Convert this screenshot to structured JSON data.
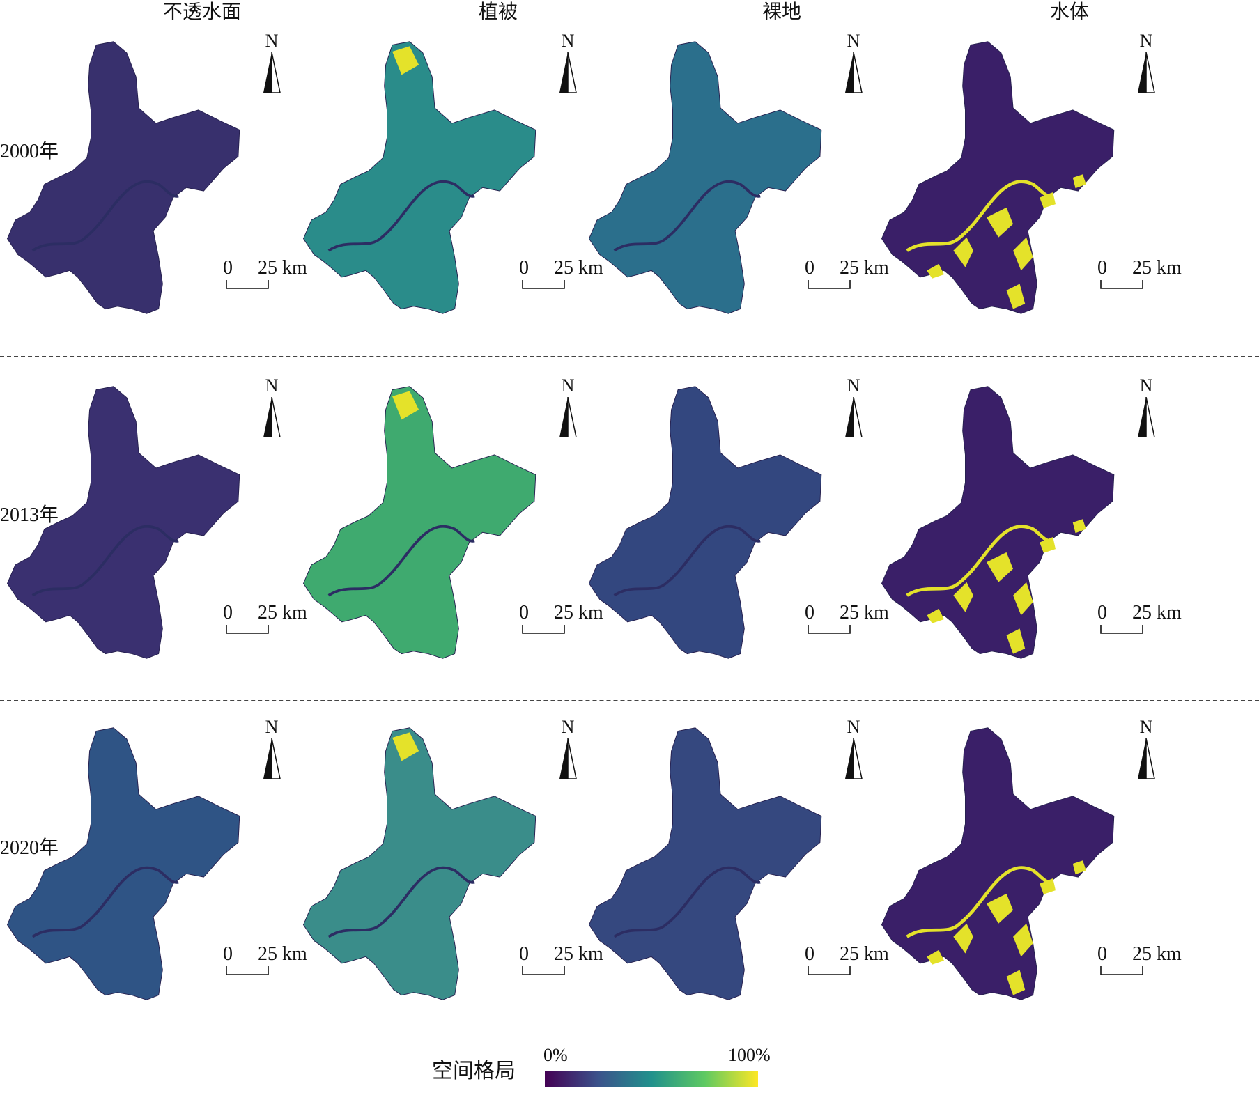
{
  "figure": {
    "columns": [
      {
        "id": "impervious",
        "label": "不透水面"
      },
      {
        "id": "vegetation",
        "label": "植被"
      },
      {
        "id": "bare",
        "label": "裸地"
      },
      {
        "id": "water",
        "label": "水体"
      }
    ],
    "rows": [
      {
        "id": "y2000",
        "label": "2000年"
      },
      {
        "id": "y2013",
        "label": "2013年"
      },
      {
        "id": "y2020",
        "label": "2020年"
      }
    ],
    "north_label": "N",
    "scale_bar": {
      "zero": "0",
      "distance": "25 km"
    },
    "legend": {
      "title": "空间格局",
      "min_label": "0%",
      "max_label": "100%",
      "colormap": [
        "#440154",
        "#3b528b",
        "#21918c",
        "#5ec962",
        "#fde725"
      ]
    },
    "panel_colors": {
      "y2000": {
        "impervious": "#38306d",
        "vegetation": "#2a8c8a",
        "bare": "#2b6f8c",
        "water": "#3a1f68"
      },
      "y2013": {
        "impervious": "#3a3070",
        "vegetation": "#3faa6f",
        "bare": "#33477f",
        "water": "#3a1f68"
      },
      "y2020": {
        "impervious": "#2f5485",
        "vegetation": "#3a8d8a",
        "bare": "#35487f",
        "water": "#3a1f68"
      }
    },
    "accent_yellow": "#e4e22a",
    "river_color": "#2c2d63"
  }
}
